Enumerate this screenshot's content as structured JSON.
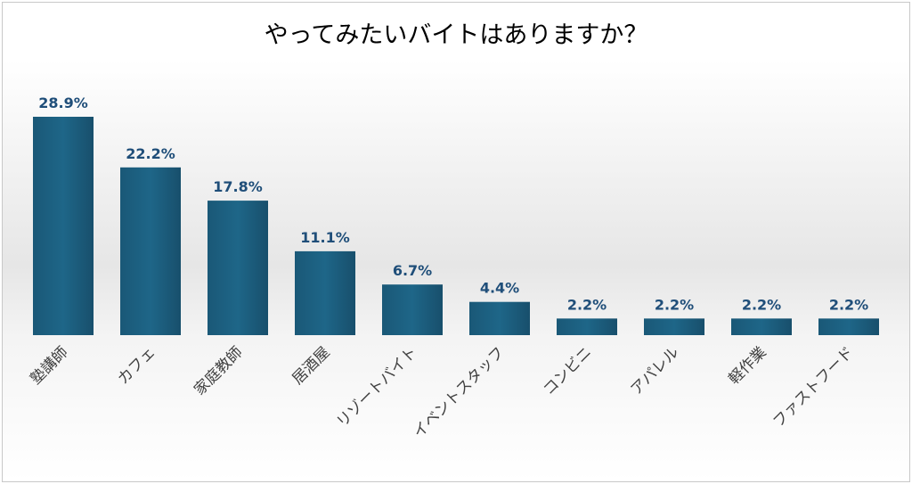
{
  "chart_data": {
    "type": "bar",
    "title": "やってみたいバイトはありますか？",
    "categories": [
      "塾講師",
      "カフェ",
      "家庭教師",
      "居酒屋",
      "リゾートバイト",
      "イベントスタッフ",
      "コンビニ",
      "アパレル",
      "軽作業",
      "ファストフード"
    ],
    "values": [
      28.9,
      22.2,
      17.8,
      11.1,
      6.7,
      4.4,
      2.2,
      2.2,
      2.2,
      2.2
    ],
    "value_labels": [
      "28.9%",
      "22.2%",
      "17.8%",
      "11.1%",
      "6.7%",
      "4.4%",
      "2.2%",
      "2.2%",
      "2.2%",
      "2.2%"
    ],
    "unit": "%",
    "ylim": [
      0,
      30
    ],
    "grid": false,
    "legend": "none",
    "bar_color": "#1b5f80",
    "label_color": "#1f4e79"
  }
}
